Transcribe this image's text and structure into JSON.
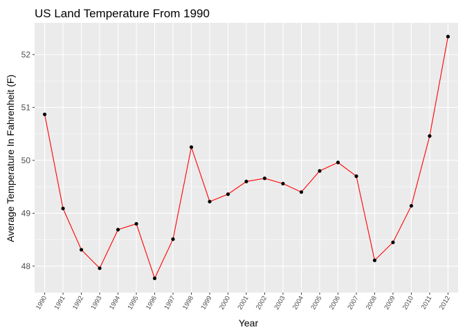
{
  "chart_data": {
    "type": "line",
    "title": "US Land Temperature From 1990",
    "xlabel": "Year",
    "ylabel": "Average Temperature In Fahrenheit (F)",
    "x": [
      "1990",
      "1991",
      "1992",
      "1993",
      "1994",
      "1995",
      "1996",
      "1997",
      "1998",
      "1999",
      "2000",
      "2001",
      "2002",
      "2003",
      "2004",
      "2005",
      "2006",
      "2007",
      "2008",
      "2009",
      "2010",
      "2011",
      "2012"
    ],
    "series": [
      {
        "values": [
          50.87,
          49.09,
          48.31,
          47.96,
          48.69,
          48.8,
          47.77,
          48.51,
          50.25,
          49.22,
          49.36,
          49.6,
          49.66,
          49.56,
          49.4,
          49.8,
          49.96,
          49.7,
          48.11,
          48.45,
          49.14,
          50.46,
          52.34
        ]
      }
    ],
    "yticks": [
      48,
      49,
      50,
      51,
      52
    ],
    "ylim": [
      47.5,
      52.6
    ],
    "grid": true,
    "colors": {
      "panel": "#ebebeb",
      "grid_major": "#ffffff",
      "line": "#ff0000",
      "point": "#000000",
      "tick_text": "#4d4d4d",
      "tick_mark": "#333333"
    }
  }
}
